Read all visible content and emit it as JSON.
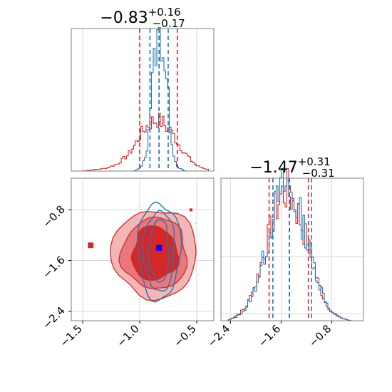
{
  "colors": {
    "red": "#d62728",
    "blue": "#1f77b4",
    "grid": "#d9d9d9",
    "axis": "#7f7f7f"
  },
  "chart_data": [
    {
      "panel": "top-left",
      "type": "histogram",
      "title": {
        "main": "−0.83",
        "sup": "+0.16",
        "sub": "−0.17"
      },
      "xlim": [
        -1.6,
        -0.35
      ],
      "xticks": [
        -1.5,
        -1.0,
        -0.5
      ],
      "series": [
        {
          "color": "red",
          "quantiles": [
            -1.0,
            -0.83,
            -0.67
          ],
          "x": [
            -1.5,
            -1.4,
            -1.3,
            -1.2,
            -1.1,
            -1.05,
            -1.0,
            -0.95,
            -0.9,
            -0.85,
            -0.8,
            -0.75,
            -0.7,
            -0.65,
            -0.6,
            -0.55,
            -0.5,
            -0.4
          ],
          "y": [
            0.0,
            0.01,
            0.02,
            0.05,
            0.12,
            0.18,
            0.26,
            0.32,
            0.36,
            0.38,
            0.36,
            0.31,
            0.26,
            0.19,
            0.13,
            0.08,
            0.04,
            0.01
          ]
        },
        {
          "color": "blue",
          "quantiles": [
            -0.91,
            -0.83,
            -0.75
          ],
          "x": [
            -1.05,
            -1.0,
            -0.97,
            -0.94,
            -0.92,
            -0.9,
            -0.88,
            -0.86,
            -0.84,
            -0.82,
            -0.8,
            -0.78,
            -0.76,
            -0.74,
            -0.72,
            -0.7,
            -0.68,
            -0.65,
            -0.6
          ],
          "y": [
            0.0,
            0.02,
            0.06,
            0.14,
            0.32,
            0.55,
            0.75,
            0.9,
            0.97,
            1.0,
            0.92,
            0.8,
            0.62,
            0.46,
            0.24,
            0.12,
            0.05,
            0.02,
            0.0
          ]
        }
      ]
    },
    {
      "panel": "bottom-left",
      "type": "contour",
      "xlim": [
        -1.6,
        -0.35
      ],
      "ylim": [
        -2.55,
        -0.3
      ],
      "xticks": [
        -1.5,
        -1.0,
        -0.5
      ],
      "yticks": [
        -0.8,
        -1.6,
        -2.4
      ],
      "red_markers": [
        {
          "x": -1.43,
          "y": -1.36
        },
        {
          "x": -0.55,
          "y": -0.8
        }
      ],
      "blue_marker": {
        "x": -0.83,
        "y": -1.4
      }
    },
    {
      "panel": "bottom-right",
      "type": "histogram",
      "title": {
        "main": "−1.47",
        "sup": "+0.31",
        "sub": "−0.31"
      },
      "xlim": [
        -2.55,
        -0.3
      ],
      "xticks": [
        -2.4,
        -1.6,
        -0.8
      ],
      "series": [
        {
          "color": "red",
          "quantiles": [
            -1.79,
            -1.47,
            -1.17
          ],
          "x": [
            -2.45,
            -2.3,
            -2.15,
            -2.0,
            -1.9,
            -1.8,
            -1.7,
            -1.6,
            -1.5,
            -1.4,
            -1.3,
            -1.2,
            -1.1,
            -1.0,
            -0.9,
            -0.8,
            -0.65,
            -0.5
          ],
          "y": [
            0.0,
            0.04,
            0.1,
            0.28,
            0.45,
            0.62,
            0.8,
            0.93,
            0.96,
            0.88,
            0.75,
            0.6,
            0.42,
            0.26,
            0.14,
            0.06,
            0.02,
            0.0
          ]
        },
        {
          "color": "blue",
          "quantiles": [
            -1.73,
            -1.47,
            -1.12
          ],
          "x": [
            -2.45,
            -2.3,
            -2.15,
            -2.0,
            -1.9,
            -1.8,
            -1.7,
            -1.6,
            -1.5,
            -1.4,
            -1.3,
            -1.2,
            -1.1,
            -1.0,
            -0.9,
            -0.8,
            -0.65,
            -0.5
          ],
          "y": [
            0.0,
            0.03,
            0.09,
            0.26,
            0.42,
            0.6,
            0.82,
            0.97,
            1.0,
            0.91,
            0.78,
            0.62,
            0.45,
            0.28,
            0.15,
            0.06,
            0.02,
            0.0
          ]
        }
      ]
    }
  ]
}
